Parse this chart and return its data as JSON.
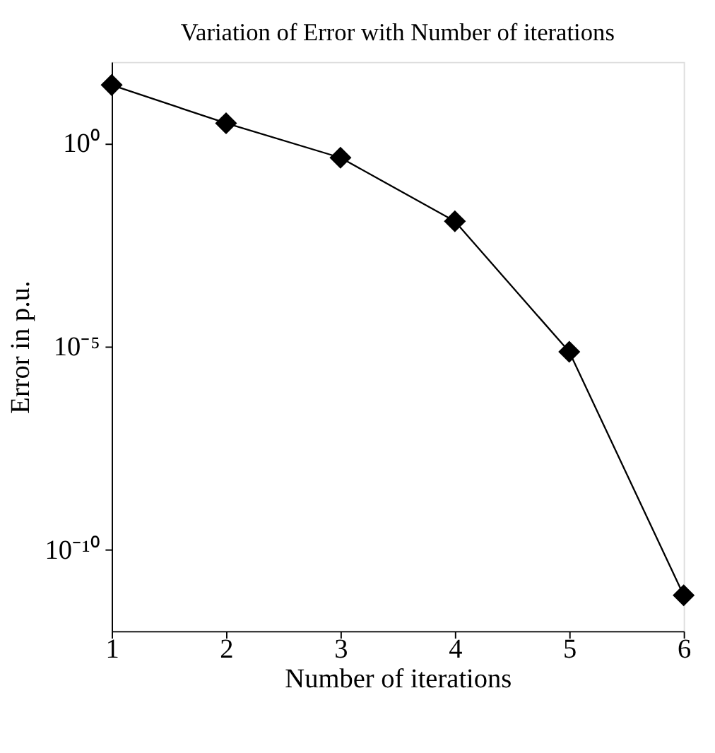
{
  "chart_data": {
    "type": "line",
    "title": "Variation of Error with Number of iterations",
    "xlabel": "Number of iterations",
    "ylabel": "Error in p.u.",
    "x": [
      1,
      2,
      3,
      4,
      5,
      6
    ],
    "series": [
      {
        "color": "#000000",
        "values": [
          27,
          3.1,
          0.44,
          0.012,
          7.4e-06,
          7.6e-12
        ]
      }
    ],
    "xlim": [
      1,
      6
    ],
    "xticks": [
      1,
      2,
      3,
      4,
      5,
      6
    ],
    "ylim": [
      1e-12,
      100
    ],
    "yticks": [
      {
        "value": 1,
        "label": "10⁰"
      },
      {
        "value": 1e-05,
        "label": "10⁻⁵"
      },
      {
        "value": 1e-10,
        "label": "10⁻¹⁰"
      }
    ],
    "log": "y",
    "grid": false,
    "legend": false,
    "marker": "diamond",
    "line_style": "solid"
  }
}
